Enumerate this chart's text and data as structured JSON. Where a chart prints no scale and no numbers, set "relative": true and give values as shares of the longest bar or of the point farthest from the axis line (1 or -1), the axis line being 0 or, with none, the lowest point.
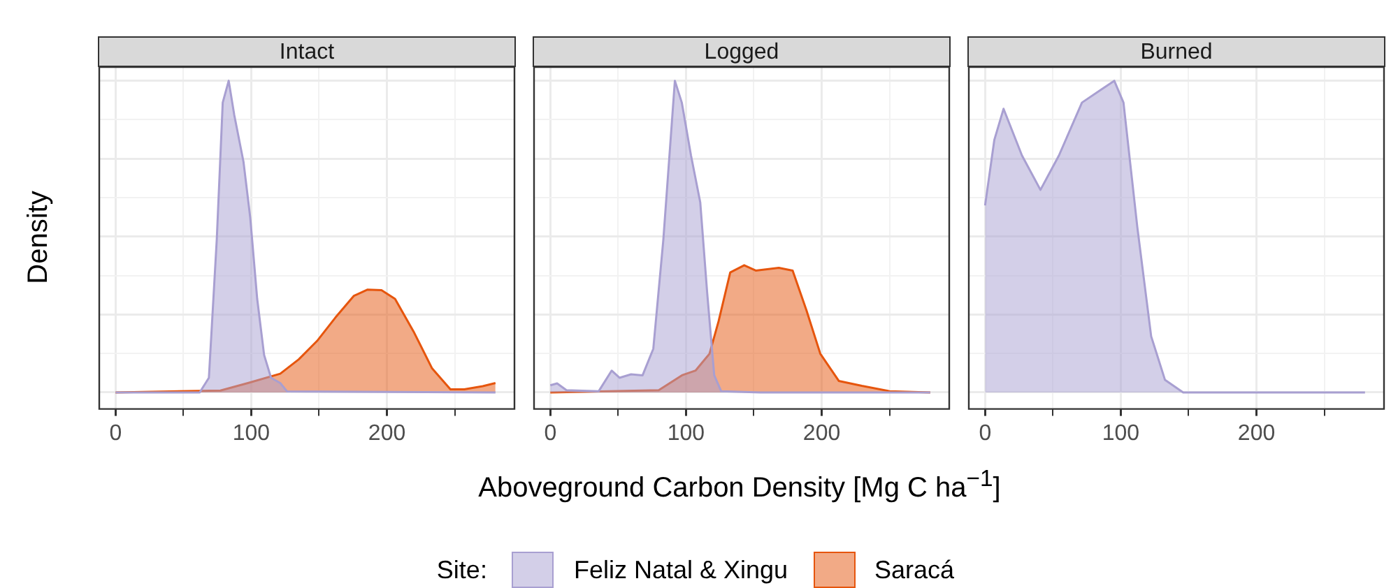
{
  "chart_data": [
    {
      "type": "area",
      "title": "Intact",
      "ylabel": "Density",
      "legend_title": "Site:",
      "relative": true,
      "xlim": [
        -12,
        294
      ],
      "xticks": [
        0,
        {
          "value": 50,
          "label": null
        },
        100,
        {
          "value": 150,
          "label": null
        },
        200,
        {
          "value": 250,
          "label": null
        }
      ],
      "grid": true,
      "legend": "bottom",
      "series": [
        {
          "name": "Feliz Natal & Xingu",
          "color": "#a89fd1",
          "x": [
            0,
            62,
            68.8,
            74.6,
            79,
            83.4,
            87.5,
            94.3,
            99.3,
            104.4,
            109.5,
            114.6,
            121.4,
            126.5,
            280
          ],
          "values": [
            0,
            0,
            0.047,
            0.49,
            0.93,
            1,
            0.89,
            0.74,
            0.56,
            0.3,
            0.12,
            0.047,
            0.03,
            0.003,
            0
          ]
        },
        {
          "name": "Saracá",
          "color": "#e6550d",
          "x": [
            0,
            77.3,
            97.6,
            121.4,
            135,
            148.5,
            162,
            175.7,
            185.8,
            196,
            206,
            219.7,
            233.3,
            246.8,
            257,
            270.6,
            280
          ],
          "values": [
            0,
            0.006,
            0.03,
            0.06,
            0.106,
            0.165,
            0.24,
            0.31,
            0.33,
            0.328,
            0.3,
            0.195,
            0.077,
            0.01,
            0.01,
            0.02,
            0.03
          ]
        }
      ]
    },
    {
      "type": "area",
      "title": "Logged",
      "xlabel": "Aboveground Carbon Density [Mg C ha$^{−1}$]",
      "relative": true,
      "xlim": [
        -12,
        294
      ],
      "xticks": [
        0,
        {
          "value": 50,
          "label": null
        },
        100,
        {
          "value": 150,
          "label": null
        },
        200,
        {
          "value": 250,
          "label": null
        }
      ],
      "grid": true,
      "series": [
        {
          "color": "#a89fd1",
          "x": [
            0,
            5,
            11.9,
            35.7,
            45.2,
            51,
            59.5,
            68,
            75.9,
            83.3,
            91.8,
            96.9,
            103.7,
            110.5,
            115.6,
            120.8,
            125.9,
            154.8,
            280
          ],
          "values": [
            0.023,
            0.029,
            0.007,
            0.004,
            0.07,
            0.047,
            0.058,
            0.055,
            0.14,
            0.49,
            1,
            0.93,
            0.76,
            0.61,
            0.32,
            0.055,
            0.004,
            0,
            0
          ]
        },
        {
          "color": "#e6550d",
          "x": [
            0,
            79.9,
            97,
            107,
            117.3,
            124,
            132.6,
            142.9,
            151.4,
            168.4,
            178.6,
            188.8,
            199,
            212.6,
            229.6,
            250,
            280
          ],
          "values": [
            0,
            0.007,
            0.055,
            0.07,
            0.124,
            0.228,
            0.385,
            0.408,
            0.391,
            0.4,
            0.391,
            0.263,
            0.124,
            0.037,
            0.021,
            0.004,
            0
          ]
        }
      ]
    },
    {
      "type": "area",
      "title": "Burned",
      "relative": true,
      "xlim": [
        -12,
        294
      ],
      "xticks": [
        0,
        {
          "value": 50,
          "label": null
        },
        100,
        {
          "value": 150,
          "label": null
        },
        200,
        {
          "value": 250,
          "label": null
        }
      ],
      "grid": true,
      "series": [
        {
          "color": "#a89fd1",
          "x": [
            0,
            6.8,
            13.6,
            27.2,
            40.8,
            54.4,
            71.4,
            85,
            95.2,
            102,
            112.2,
            122.4,
            132.6,
            146,
            280
          ],
          "values": [
            0.6,
            0.81,
            0.91,
            0.76,
            0.65,
            0.76,
            0.93,
            0.97,
            1,
            0.93,
            0.53,
            0.18,
            0.04,
            0,
            0
          ]
        }
      ]
    }
  ]
}
